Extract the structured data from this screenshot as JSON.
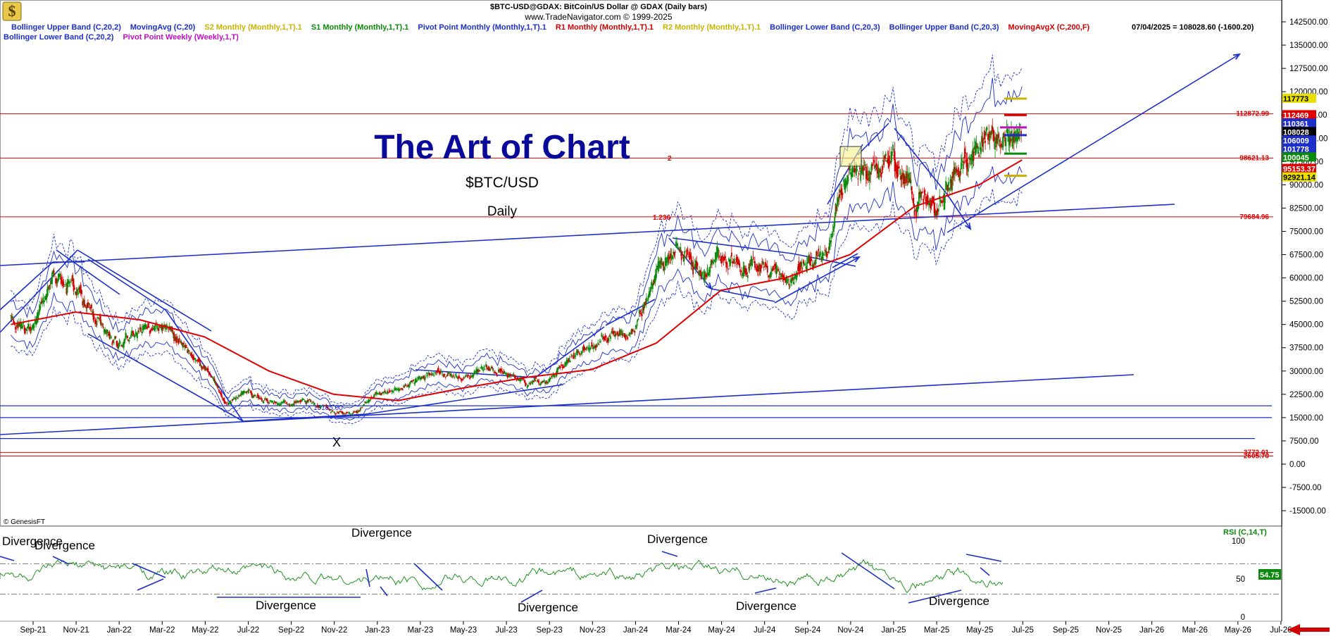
{
  "header": {
    "symbol_line": "$BTC-USD@GDAX:  BitCoin/US Dollar @ GDAX  (Daily bars)",
    "site_line": "www.TradeNavigator.com © 1999-2025",
    "last_value": "07/04/2025 = 108028.60 (-1600.20)",
    "credit": "© GenesisFT"
  },
  "legend_row1": [
    {
      "text": "Bollinger Upper Band (C,20,2)",
      "color": "#1c2fc9"
    },
    {
      "text": "MovingAvg (C,20)",
      "color": "#1c2fc9"
    },
    {
      "text": "S2 Monthly (Monthly,1,T).1",
      "color": "#c8b400"
    },
    {
      "text": "S1 Monthly (Monthly,1,T).1",
      "color": "#0a8a0a"
    },
    {
      "text": "Pivot Point Monthly (Monthly,1,T).1",
      "color": "#1c2fc9"
    },
    {
      "text": "R1 Monthly (Monthly,1,T).1",
      "color": "#d00000"
    },
    {
      "text": "R2 Monthly (Monthly,1,T).1",
      "color": "#c8b400"
    },
    {
      "text": "Bollinger Lower Band (C,20,3)",
      "color": "#1c2fc9"
    },
    {
      "text": "Bollinger Upper Band (C,20,3)",
      "color": "#1c2fc9"
    },
    {
      "text": "MovingAvgX (C,200,F)",
      "color": "#d00000"
    }
  ],
  "legend_row2": [
    {
      "text": "Bollinger Lower Band (C,20,2)",
      "color": "#1c2fc9"
    },
    {
      "text": "Pivot Point Weekly (Weekly,1,T)",
      "color": "#c010c0"
    }
  ],
  "title": "The Art of Chart",
  "subtitle_symbol": "$BTC/USD",
  "subtitle_period": "Daily",
  "rsi_label": "RSI (C,14,T)",
  "rsi_last_badge": "54.75",
  "x_marker": "X",
  "fib_labels": [
    "1.236",
    "2"
  ],
  "low_label": "15185.00",
  "divergence_label": "Divergence",
  "price_levels": [
    {
      "label": "112872.99",
      "value": 112872.99,
      "color": "#e00000"
    },
    {
      "label": "98621.13",
      "value": 98621.13,
      "color": "#e00000"
    },
    {
      "label": "79684.96",
      "value": 79684.96,
      "color": "#e00000"
    },
    {
      "label": "3772.01",
      "value": 3772.01,
      "color": "#e00000"
    },
    {
      "label": "2605.70",
      "value": 2605.7,
      "color": "#e00000"
    }
  ],
  "right_badges": [
    {
      "text": "117773",
      "value": 117773,
      "bg": "#e8e000",
      "fg": "#000000"
    },
    {
      "text": "112469",
      "value": 112469,
      "bg": "#e00000",
      "fg": "#ffffff"
    },
    {
      "text": "110361",
      "value": 110361,
      "bg": "#1c2fc9",
      "fg": "#ffffff"
    },
    {
      "text": "108028",
      "value": 108028,
      "bg": "#000000",
      "fg": "#ffffff"
    },
    {
      "text": "106009",
      "value": 106009,
      "bg": "#1c2fc9",
      "fg": "#ffffff"
    },
    {
      "text": "101778",
      "value": 101778,
      "bg": "#1c2fc9",
      "fg": "#ffffff"
    },
    {
      "text": "100045",
      "value": 100045,
      "bg": "#0a8a0a",
      "fg": "#ffffff"
    },
    {
      "text": "95153.37",
      "value": 95153.37,
      "bg": "#e00000",
      "fg": "#ffffff"
    },
    {
      "text": "92921.14",
      "value": 92921.14,
      "bg": "#e8e000",
      "fg": "#000000"
    }
  ],
  "chart_data": {
    "type": "line",
    "series_style": "price candlesticks with Bollinger bands, 200-day moving average and RSI sub-panel",
    "y_ticks": [
      "142500.00",
      "135000.00",
      "127500.00",
      "120000.00",
      "112500.00",
      "105000.00",
      "97500.00",
      "90000.00",
      "82500.00",
      "75000.00",
      "67500.00",
      "60000.00",
      "52500.00",
      "45000.00",
      "37500.00",
      "30000.00",
      "22500.00",
      "15000.00",
      "7500.00",
      "0.00",
      "-7500.00",
      "-15000.00"
    ],
    "ylim": [
      -18000,
      145500
    ],
    "x_ticks": [
      "Sep-21",
      "Nov-21",
      "Jan-22",
      "Mar-22",
      "May-22",
      "Jul-22",
      "Sep-22",
      "Nov-22",
      "Jan-23",
      "Mar-23",
      "May-23",
      "Jul-23",
      "Sep-23",
      "Nov-23",
      "Jan-24",
      "Mar-24",
      "May-24",
      "Jul-24",
      "Sep-24",
      "Nov-24",
      "Jan-25",
      "Mar-25",
      "May-25",
      "Jul-25",
      "Sep-25",
      "Nov-25",
      "Jan-26",
      "Mar-26",
      "May-26",
      "Jul-26"
    ],
    "price": {
      "name": "BTC-USD close",
      "x": [
        "2021-08",
        "2021-09",
        "2021-10",
        "2021-11",
        "2021-12",
        "2022-01",
        "2022-02",
        "2022-03",
        "2022-04",
        "2022-05",
        "2022-06",
        "2022-07",
        "2022-08",
        "2022-09",
        "2022-10",
        "2022-11",
        "2022-12",
        "2023-01",
        "2023-02",
        "2023-03",
        "2023-04",
        "2023-05",
        "2023-06",
        "2023-07",
        "2023-08",
        "2023-09",
        "2023-10",
        "2023-11",
        "2023-12",
        "2024-01",
        "2024-02",
        "2024-03",
        "2024-04",
        "2024-05",
        "2024-06",
        "2024-07",
        "2024-08",
        "2024-09",
        "2024-10",
        "2024-11",
        "2024-12",
        "2025-01",
        "2025-02",
        "2025-03",
        "2025-04",
        "2025-05",
        "2025-06",
        "2025-07"
      ],
      "values": [
        47000,
        43000,
        61000,
        57000,
        47000,
        38500,
        43000,
        45500,
        38500,
        31500,
        19500,
        23500,
        20000,
        19500,
        20500,
        17000,
        16500,
        23000,
        23500,
        28500,
        29500,
        27000,
        30500,
        29200,
        26000,
        27000,
        34500,
        37500,
        42500,
        42500,
        62000,
        70500,
        60500,
        67500,
        62500,
        64500,
        59000,
        63500,
        70000,
        96500,
        93500,
        102000,
        84500,
        82500,
        94500,
        104500,
        107000,
        108028
      ]
    },
    "ma200": {
      "name": "MovingAvgX (C,200,F)",
      "x": [
        "2021-08",
        "2021-11",
        "2022-02",
        "2022-05",
        "2022-08",
        "2022-11",
        "2023-02",
        "2023-05",
        "2023-08",
        "2023-11",
        "2024-02",
        "2024-05",
        "2024-08",
        "2024-11",
        "2025-02",
        "2025-05",
        "2025-07"
      ],
      "values": [
        45000,
        49000,
        46500,
        41000,
        30000,
        22500,
        20500,
        24500,
        28000,
        30500,
        39000,
        56000,
        60000,
        67500,
        83000,
        90000,
        98000
      ]
    },
    "rsi": {
      "name": "RSI (C,14,T)",
      "ylim": [
        0,
        100
      ],
      "y_ticks": [
        "100",
        "50",
        "0"
      ],
      "levels": [
        70,
        30
      ],
      "last": 54.75
    }
  }
}
